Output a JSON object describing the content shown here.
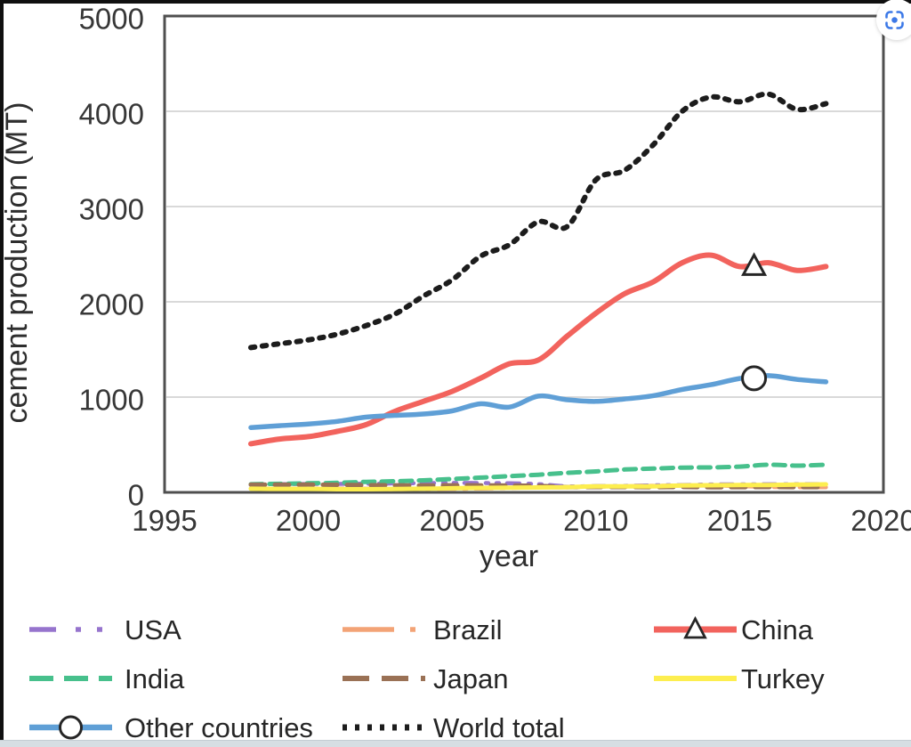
{
  "page": {
    "background": "#ffffff",
    "frame_color": "#101010",
    "bottom_strip_color": "#d6dee3"
  },
  "lens_button": {
    "tooltip": "Search inside image",
    "icon_color": "#3b78e7"
  },
  "chart_data": {
    "type": "line",
    "title": "",
    "xlabel": "year",
    "ylabel": "cement production (MT)",
    "xlim": [
      1995,
      2020
    ],
    "ylim": [
      0,
      5000
    ],
    "xticks": [
      1995,
      2000,
      2005,
      2010,
      2015,
      2020
    ],
    "yticks": [
      0,
      1000,
      2000,
      3000,
      4000,
      5000
    ],
    "grid": "horizontal",
    "grid_color": "#d9d9d9",
    "border_color": "#4f4f4f",
    "tick_label_color": "#373737",
    "legend_position": "bottom",
    "years": [
      1998,
      1999,
      2000,
      2001,
      2002,
      2003,
      2004,
      2005,
      2006,
      2007,
      2008,
      2009,
      2010,
      2011,
      2012,
      2013,
      2014,
      2015,
      2016,
      2017,
      2018
    ],
    "series": [
      {
        "name": "USA",
        "color": "#9674cd",
        "width": 4.5,
        "dash": "14 10 3 9 3 9",
        "legend_dash": "30 22 6 18 6 30",
        "marker": "none",
        "legend": {
          "row": 0,
          "col": 0
        },
        "values": [
          84,
          86,
          88,
          89,
          91,
          93,
          97,
          99,
          98,
          95,
          86,
          64,
          66,
          68,
          74,
          77,
          83,
          84,
          85,
          86,
          87
        ]
      },
      {
        "name": "Brazil",
        "color": "#f3a376",
        "width": 4.5,
        "dash": "20 9 4 9",
        "legend_dash": "58 18 6 18",
        "marker": "none",
        "legend": {
          "row": 0,
          "col": 1
        },
        "values": [
          40,
          40,
          39,
          39,
          38,
          34,
          36,
          37,
          40,
          46,
          52,
          52,
          59,
          64,
          69,
          70,
          71,
          65,
          57,
          54,
          53
        ]
      },
      {
        "name": "China",
        "color": "#f2635d",
        "width": 6,
        "dash": "",
        "legend_dash": "",
        "marker": "triangle",
        "marker_at": [
          2015.5,
          2370
        ],
        "legend": {
          "row": 0,
          "col": 2
        },
        "values": [
          510,
          560,
          585,
          640,
          710,
          850,
          955,
          1060,
          1200,
          1350,
          1390,
          1640,
          1880,
          2085,
          2210,
          2410,
          2490,
          2370,
          2410,
          2330,
          2370
        ]
      },
      {
        "name": "India",
        "color": "#47c08c",
        "width": 5,
        "dash": "13 8",
        "legend_dash": "27 12",
        "marker": "none",
        "legend": {
          "row": 1,
          "col": 0
        },
        "values": [
          85,
          90,
          95,
          100,
          110,
          117,
          126,
          140,
          155,
          170,
          185,
          205,
          220,
          240,
          250,
          260,
          262,
          270,
          290,
          280,
          290
        ]
      },
      {
        "name": "Japan",
        "color": "#9a7155",
        "width": 5,
        "dash": "16 11",
        "legend_dash": "30 14",
        "marker": "none",
        "legend": {
          "row": 1,
          "col": 1
        },
        "values": [
          81,
          80,
          81,
          79,
          76,
          74,
          72,
          74,
          73,
          71,
          68,
          55,
          56,
          56,
          55,
          57,
          54,
          55,
          56,
          55,
          55
        ]
      },
      {
        "name": "Turkey",
        "color": "#fdee4f",
        "width": 5,
        "dash": "",
        "legend_dash": "",
        "marker": "none",
        "legend": {
          "row": 1,
          "col": 2
        },
        "values": [
          38,
          36,
          36,
          33,
          33,
          35,
          38,
          43,
          47,
          49,
          51,
          54,
          63,
          63,
          64,
          72,
          75,
          77,
          77,
          81,
          84
        ]
      },
      {
        "name": "Other countries",
        "color": "#5f9fd6",
        "width": 5.5,
        "dash": "",
        "legend_dash": "",
        "marker": "circle",
        "marker_at": [
          2015.5,
          1198
        ],
        "legend": {
          "row": 2,
          "col": 0
        },
        "values": [
          680,
          700,
          718,
          745,
          790,
          808,
          822,
          855,
          930,
          895,
          1010,
          972,
          955,
          980,
          1015,
          1080,
          1130,
          1195,
          1225,
          1185,
          1160
        ]
      },
      {
        "name": "World total",
        "color": "#1c1c1c",
        "width": 6,
        "dash": "4.5 8.5",
        "legend_dash": "5 9",
        "marker": "none",
        "legend": {
          "row": 2,
          "col": 1
        },
        "values": [
          1520,
          1560,
          1600,
          1660,
          1750,
          1870,
          2060,
          2230,
          2480,
          2600,
          2840,
          2790,
          3280,
          3380,
          3650,
          4000,
          4150,
          4100,
          4180,
          4020,
          4080
        ]
      }
    ]
  }
}
